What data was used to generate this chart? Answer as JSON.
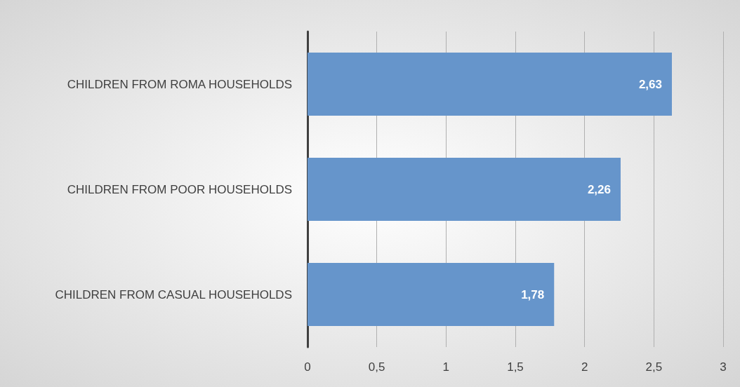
{
  "chart_data": {
    "type": "bar",
    "orientation": "horizontal",
    "categories": [
      "CHILDREN FROM ROMA HOUSEHOLDS",
      "CHILDREN FROM POOR HOUSEHOLDS",
      "CHILDREN FROM CASUAL HOUSEHOLDS"
    ],
    "values": [
      2.63,
      2.26,
      1.78
    ],
    "value_labels": [
      "2,63",
      "2,26",
      "1,78"
    ],
    "color": "#6695cb",
    "xlim": [
      0,
      3
    ],
    "xticks": [
      0,
      {
        "value": 0.5,
        "label": "0,5"
      },
      1,
      {
        "value": 1.5,
        "label": "1,5"
      },
      2,
      {
        "value": 2.5,
        "label": "2,5"
      },
      3
    ],
    "grid": "x"
  }
}
